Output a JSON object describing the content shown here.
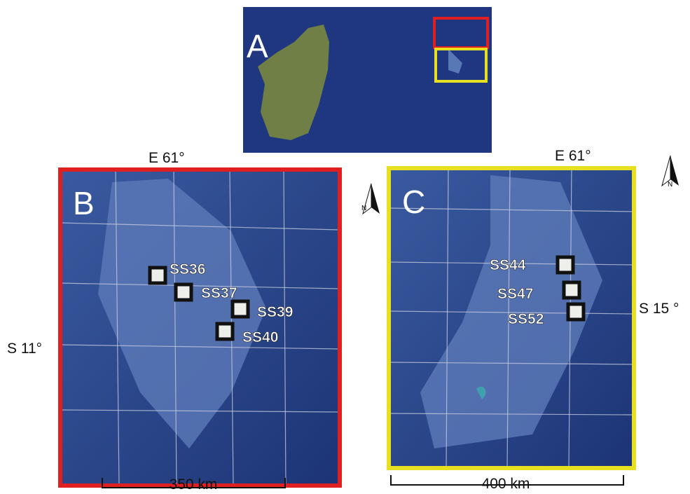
{
  "panels": [
    {
      "label": "A"
    },
    {
      "label": "B",
      "stations": [
        "SS36",
        "SS37",
        "SS39",
        "SS40"
      ],
      "longitude": "E 61°",
      "latitude": "S 11°",
      "scale": "350 km",
      "north": "N"
    },
    {
      "label": "C",
      "stations": [
        "SS44",
        "SS47",
        "SS52"
      ],
      "longitude": "E 61°",
      "latitude": "S 15 °",
      "scale": "400 km",
      "north": "N"
    }
  ]
}
